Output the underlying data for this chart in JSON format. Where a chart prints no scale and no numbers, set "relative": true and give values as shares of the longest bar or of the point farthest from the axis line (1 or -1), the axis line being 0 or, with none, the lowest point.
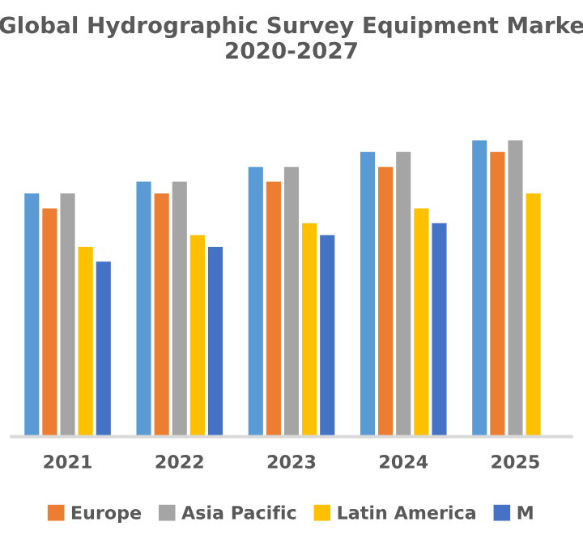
{
  "chart_data": {
    "type": "bar",
    "title": "Global Hydrographic Survey Equipment Marke\n2020-2027",
    "relative": true,
    "legend": "bottom",
    "grid": false,
    "categories": [
      "2021",
      "2022",
      "2023",
      "2024",
      "2025"
    ],
    "series": [
      {
        "color": "#5b9bd5",
        "values": [
          0.82,
          0.86,
          0.91,
          0.96,
          1
        ]
      },
      {
        "name": "Europe",
        "color": "#ed7d31",
        "values": [
          0.77,
          0.82,
          0.86,
          0.91,
          0.96
        ]
      },
      {
        "name": "Asia Pacific",
        "color": "#a5a5a5",
        "values": [
          0.82,
          0.86,
          0.91,
          0.96,
          1
        ]
      },
      {
        "name": "Latin America",
        "color": "#ffc000",
        "values": [
          0.64,
          0.68,
          0.72,
          0.77,
          0.82
        ]
      },
      {
        "name": "M",
        "color": "#4472c4",
        "values": [
          0.59,
          0.64,
          0.68,
          0.72,
          null
        ]
      }
    ]
  }
}
